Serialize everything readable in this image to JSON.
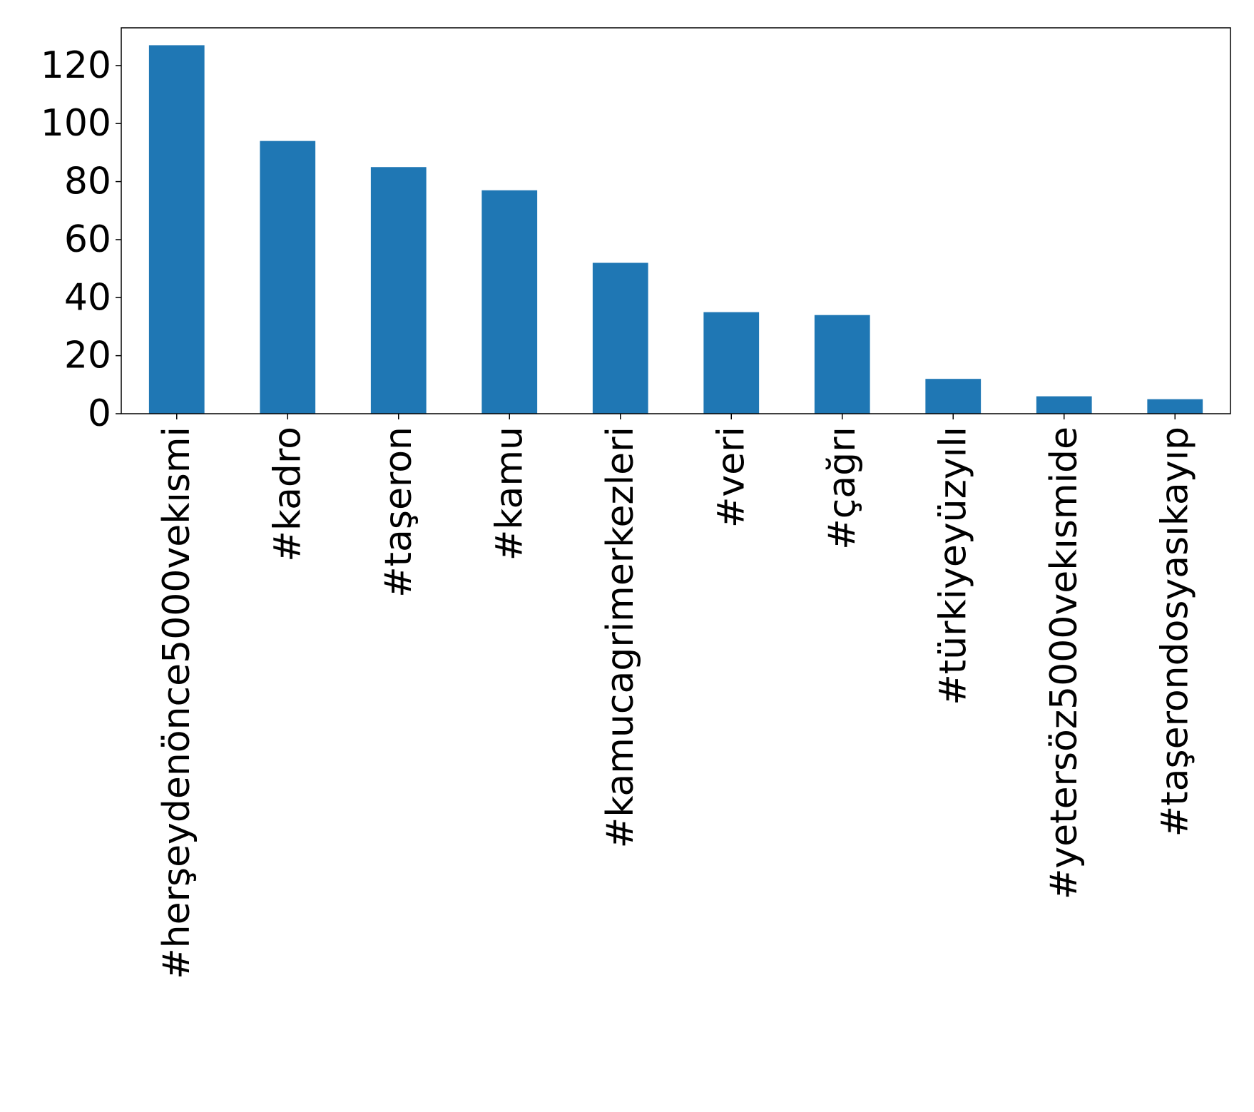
{
  "chart_data": {
    "type": "bar",
    "categories": [
      "#herşeydenönce5000vekısmi",
      "#kadro",
      "#taşeron",
      "#kamu",
      "#kamucagrimerkezleri",
      "#veri",
      "#çağrı",
      "#türkiyeyüzyılı",
      "#yetersöz5000vekısmide",
      "#taşerondosyasıkayıp"
    ],
    "values": [
      127,
      94,
      85,
      77,
      52,
      35,
      34,
      12,
      6,
      5
    ],
    "title": "",
    "xlabel": "",
    "ylabel": "",
    "ylim": [
      0,
      133
    ],
    "yticks": [
      0,
      20,
      40,
      60,
      80,
      100,
      120
    ],
    "bar_color": "#1f77b4",
    "grid": false,
    "legend": "none"
  }
}
